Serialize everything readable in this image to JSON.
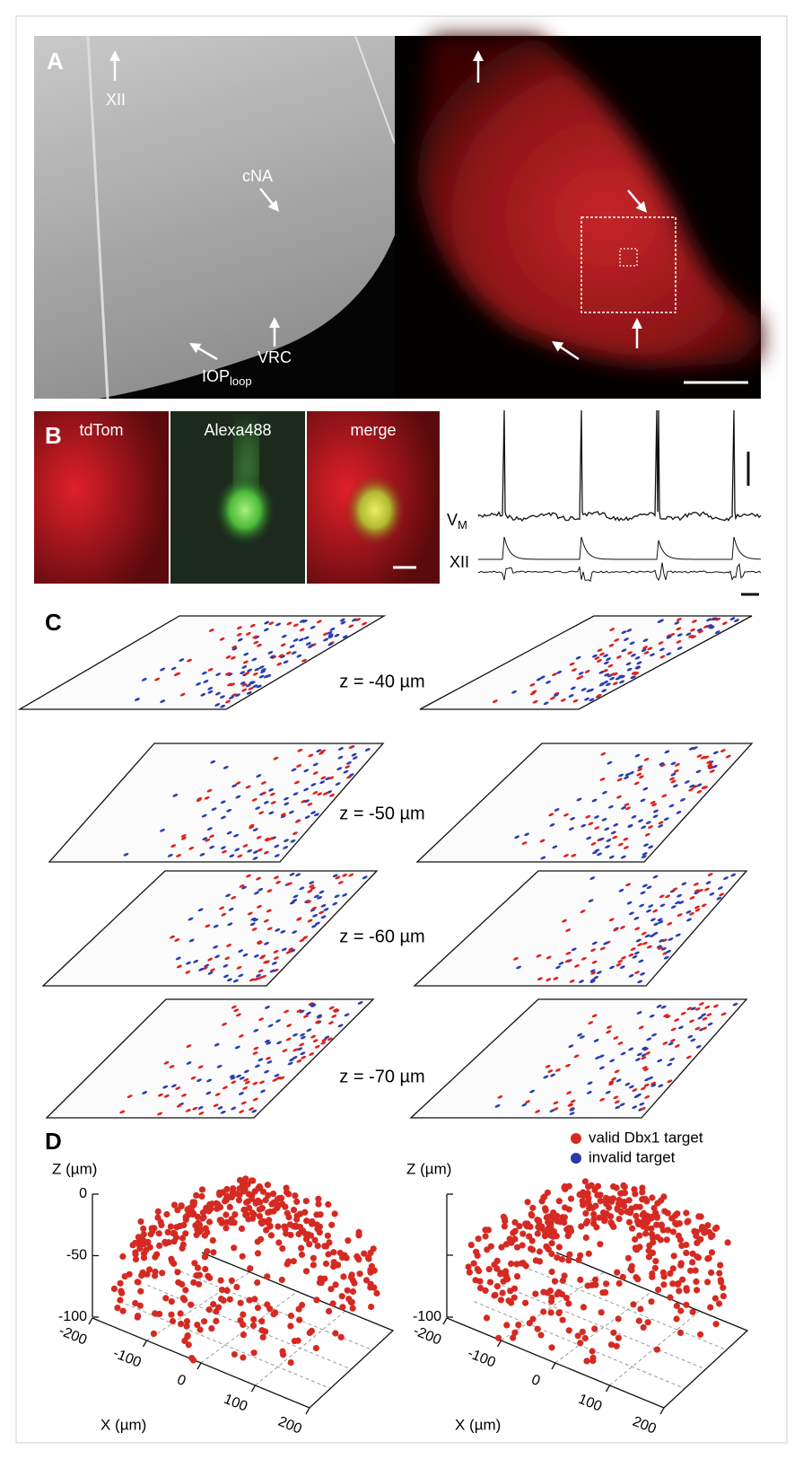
{
  "panels": {
    "A": {
      "label": "A",
      "annotations": [
        "XII",
        "cNA",
        "VRC"
      ],
      "iop": {
        "main": "IOP",
        "sub": "loop"
      }
    },
    "B": {
      "label": "B",
      "images": [
        "tdTom",
        "Alexa488",
        "merge"
      ],
      "vm": {
        "main": "V",
        "sub": "M"
      },
      "xii": "XII"
    },
    "C": {
      "label": "C",
      "depths": [
        "z = -40 µm",
        "z = -50 µm",
        "z = -60 µm",
        "z = -70 µm"
      ]
    },
    "D": {
      "label": "D",
      "legend": [
        {
          "name": "valid Dbx1 target",
          "color": "#d42a22"
        },
        {
          "name": "invalid target",
          "color": "#2b3aa8"
        }
      ],
      "z_label": "Z (µm)",
      "x_label": "X (µm)",
      "left": {
        "zlim": [
          -100,
          0
        ],
        "zticks": [
          0,
          -50,
          -100
        ],
        "xticks": [
          -200,
          -100,
          0,
          100,
          200
        ]
      },
      "right": {
        "zlim": [
          -100,
          0
        ],
        "zticks": [
          -100
        ],
        "xticks": [
          -200,
          -100,
          0,
          100,
          200
        ]
      }
    }
  }
}
